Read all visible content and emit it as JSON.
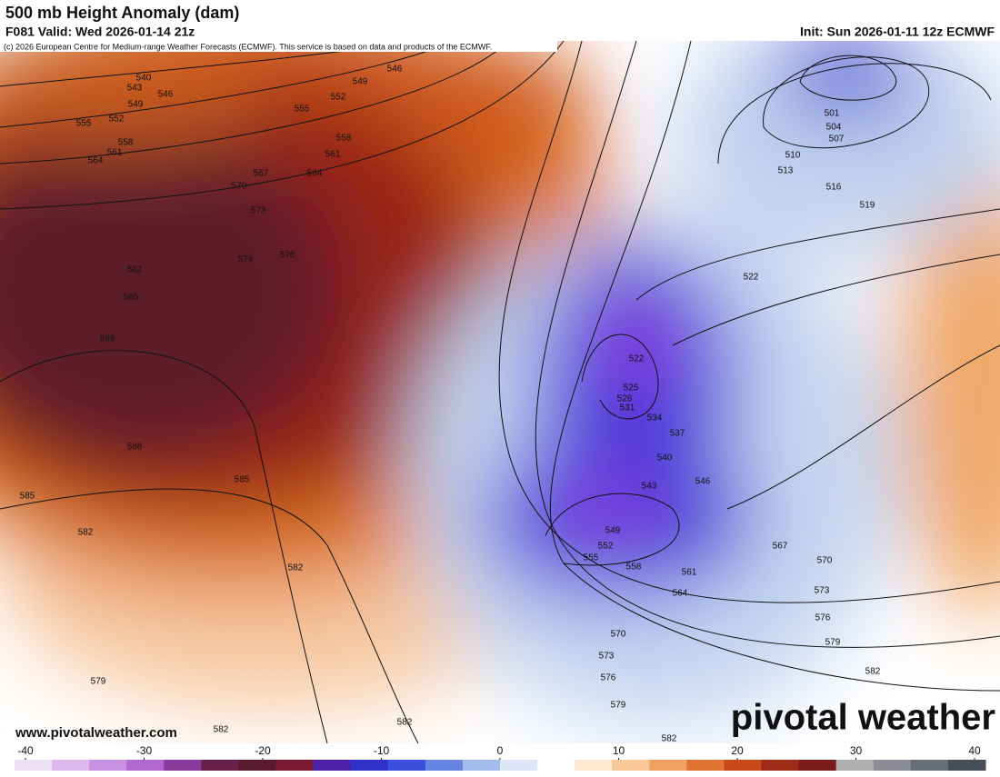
{
  "header": {
    "title": "500 mb Height Anomaly (dam)",
    "valid": "F081 Valid: Wed 2026-01-14 21z",
    "init": "Init: Sun 2026-01-11 12z ECMWF",
    "credit": "(c) 2026 European Centre for Medium-range Weather Forecasts (ECMWF). This service is based on data and products of the ECMWF."
  },
  "map": {
    "contour_labels": [
      540,
      543,
      546,
      549,
      552,
      555,
      558,
      561,
      564,
      567,
      570,
      573,
      576,
      579,
      582,
      585,
      588,
      588,
      585,
      585,
      582,
      582,
      579,
      582,
      582,
      522,
      522,
      525,
      528,
      531,
      534,
      537,
      540,
      543,
      546,
      549,
      552,
      555,
      558,
      561,
      564,
      567,
      570,
      573,
      576,
      579,
      582,
      570,
      573,
      576,
      579,
      582,
      501,
      504,
      507,
      510,
      513,
      516,
      519,
      549,
      552,
      555,
      558,
      561,
      564,
      546
    ]
  },
  "colorbar": {
    "lim": [
      -40,
      40
    ],
    "ticks": [
      -40,
      -30,
      -20,
      -10,
      0,
      10,
      20,
      30,
      40
    ],
    "colors": [
      "#ece0f4",
      "#dcb8ec",
      "#c890e0",
      "#b068d0",
      "#8a3a9a",
      "#6a1e4a",
      "#5a1a2e",
      "#7a1a34",
      "#4a20a8",
      "#3030c8",
      "#3a50dc",
      "#6684e2",
      "#a4bcec",
      "#dce6f6",
      "#ffffff",
      "#fde8d2",
      "#f8c898",
      "#f0a060",
      "#e07232",
      "#c84a1a",
      "#a02a18",
      "#7a1a1a",
      "#b0b0b0",
      "#8c8c94",
      "#686e78",
      "#464e58"
    ]
  },
  "footer": {
    "website": "www.pivotalweather.com",
    "watermark": "pivotal weather"
  }
}
